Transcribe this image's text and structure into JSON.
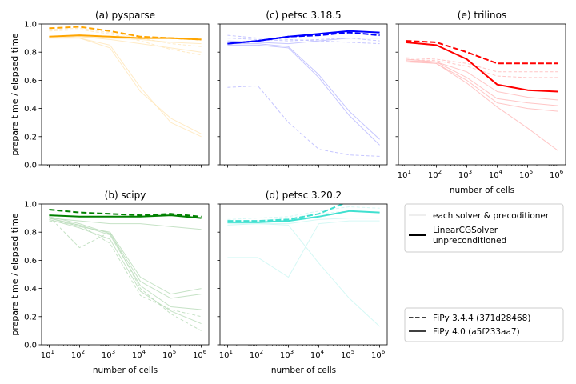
{
  "figure": {
    "ylabel": "prepare time / elapsed time",
    "xlabel": "number of cells",
    "legend_solver": {
      "each": "each solver & precoditioner",
      "highlight_line1": "LinearCGSolver",
      "highlight_line2": "unpreconditioned"
    },
    "legend_version": {
      "old": "FiPy 3.4.4 (371d28468)",
      "new": "FiPy 4.0 (a5f233aa7)"
    },
    "xtick_labels": [
      "10",
      "10",
      "10",
      "10",
      "10",
      "10"
    ],
    "xtick_exps": [
      "1",
      "2",
      "3",
      "4",
      "5",
      "6"
    ],
    "ytick_labels": [
      "0.0",
      "0.2",
      "0.4",
      "0.6",
      "0.8",
      "1.0"
    ]
  },
  "chart_data": [
    {
      "type": "line",
      "title": "(a) pysparse",
      "color": "#ffa500",
      "xscale": "log",
      "xlim": [
        10,
        1000000
      ],
      "ylim": [
        0,
        1
      ],
      "x": [
        10,
        100,
        1000,
        10000,
        100000,
        1000000
      ],
      "series": [
        {
          "version": "3.4.4",
          "style": "dashed",
          "highlight": true,
          "values": [
            0.97,
            0.98,
            0.95,
            0.91,
            0.9,
            0.89
          ]
        },
        {
          "version": "4.0",
          "style": "solid",
          "highlight": true,
          "values": [
            0.91,
            0.92,
            0.91,
            0.9,
            0.9,
            0.89
          ]
        },
        {
          "version": "3.4.4",
          "style": "dashed",
          "highlight": false,
          "values": [
            0.96,
            0.97,
            0.94,
            0.9,
            0.86,
            0.84
          ]
        },
        {
          "version": "3.4.4",
          "style": "dashed",
          "highlight": false,
          "values": [
            0.95,
            0.96,
            0.93,
            0.88,
            0.82,
            0.78
          ]
        },
        {
          "version": "4.0",
          "style": "solid",
          "highlight": false,
          "values": [
            0.9,
            0.91,
            0.9,
            0.89,
            0.87,
            0.86
          ]
        },
        {
          "version": "4.0",
          "style": "solid",
          "highlight": false,
          "values": [
            0.9,
            0.91,
            0.89,
            0.86,
            0.83,
            0.8
          ]
        },
        {
          "version": "4.0",
          "style": "solid",
          "highlight": false,
          "values": [
            0.9,
            0.9,
            0.85,
            0.55,
            0.3,
            0.2
          ]
        },
        {
          "version": "4.0",
          "style": "solid",
          "highlight": false,
          "values": [
            0.9,
            0.9,
            0.83,
            0.52,
            0.33,
            0.22
          ]
        }
      ]
    },
    {
      "type": "line",
      "title": "(c) petsc 3.18.5",
      "color": "#0000ff",
      "xscale": "log",
      "xlim": [
        10,
        1000000
      ],
      "ylim": [
        0,
        1
      ],
      "x": [
        10,
        100,
        1000,
        10000,
        100000,
        1000000
      ],
      "series": [
        {
          "version": "3.4.4",
          "style": "dashed",
          "highlight": true,
          "values": [
            0.86,
            0.88,
            0.91,
            0.92,
            0.94,
            0.92
          ]
        },
        {
          "version": "4.0",
          "style": "solid",
          "highlight": true,
          "values": [
            0.86,
            0.88,
            0.91,
            0.93,
            0.95,
            0.94
          ]
        },
        {
          "version": "3.4.4",
          "style": "dashed",
          "highlight": false,
          "values": [
            0.92,
            0.9,
            0.89,
            0.88,
            0.87,
            0.86
          ]
        },
        {
          "version": "3.4.4",
          "style": "dashed",
          "highlight": false,
          "values": [
            0.9,
            0.89,
            0.88,
            0.89,
            0.9,
            0.88
          ]
        },
        {
          "version": "3.4.4",
          "style": "dashed",
          "highlight": false,
          "values": [
            0.55,
            0.56,
            0.3,
            0.11,
            0.07,
            0.06
          ]
        },
        {
          "version": "4.0",
          "style": "solid",
          "highlight": false,
          "values": [
            0.88,
            0.87,
            0.86,
            0.88,
            0.9,
            0.9
          ]
        },
        {
          "version": "4.0",
          "style": "solid",
          "highlight": false,
          "values": [
            0.85,
            0.85,
            0.83,
            0.62,
            0.35,
            0.14
          ]
        },
        {
          "version": "4.0",
          "style": "solid",
          "highlight": false,
          "values": [
            0.86,
            0.86,
            0.84,
            0.64,
            0.38,
            0.18
          ]
        }
      ]
    },
    {
      "type": "line",
      "title": "(e) trilinos",
      "color": "#ff0000",
      "xscale": "log",
      "xlim": [
        10,
        1000000
      ],
      "ylim": [
        0,
        1
      ],
      "x": [
        10,
        100,
        1000,
        10000,
        100000,
        1000000
      ],
      "series": [
        {
          "version": "3.4.4",
          "style": "dashed",
          "highlight": true,
          "values": [
            0.88,
            0.87,
            0.8,
            0.72,
            0.72,
            0.72
          ]
        },
        {
          "version": "4.0",
          "style": "solid",
          "highlight": true,
          "values": [
            0.87,
            0.85,
            0.75,
            0.57,
            0.53,
            0.52
          ]
        },
        {
          "version": "3.4.4",
          "style": "dashed",
          "highlight": false,
          "values": [
            0.76,
            0.75,
            0.72,
            0.66,
            0.66,
            0.66
          ]
        },
        {
          "version": "3.4.4",
          "style": "dashed",
          "highlight": false,
          "values": [
            0.75,
            0.74,
            0.7,
            0.63,
            0.62,
            0.62
          ]
        },
        {
          "version": "4.0",
          "style": "solid",
          "highlight": false,
          "values": [
            0.74,
            0.73,
            0.62,
            0.47,
            0.44,
            0.42
          ]
        },
        {
          "version": "4.0",
          "style": "solid",
          "highlight": false,
          "values": [
            0.73,
            0.72,
            0.6,
            0.44,
            0.4,
            0.38
          ]
        },
        {
          "version": "4.0",
          "style": "solid",
          "highlight": false,
          "values": [
            0.74,
            0.72,
            0.58,
            0.41,
            0.26,
            0.1
          ]
        },
        {
          "version": "4.0",
          "style": "solid",
          "highlight": false,
          "values": [
            0.75,
            0.73,
            0.66,
            0.52,
            0.48,
            0.46
          ]
        }
      ]
    },
    {
      "type": "line",
      "title": "(b) scipy",
      "color": "#008000",
      "xscale": "log",
      "xlim": [
        10,
        1000000
      ],
      "ylim": [
        0,
        1
      ],
      "x": [
        10,
        100,
        1000,
        10000,
        100000,
        1000000
      ],
      "series": [
        {
          "version": "3.4.4",
          "style": "dashed",
          "highlight": true,
          "values": [
            0.96,
            0.94,
            0.93,
            0.92,
            0.93,
            0.91
          ]
        },
        {
          "version": "4.0",
          "style": "solid",
          "highlight": true,
          "values": [
            0.92,
            0.91,
            0.91,
            0.91,
            0.92,
            0.9
          ]
        },
        {
          "version": "4.0",
          "style": "solid",
          "highlight": false,
          "values": [
            0.9,
            0.85,
            0.78,
            0.42,
            0.27,
            0.25
          ]
        },
        {
          "version": "4.0",
          "style": "solid",
          "highlight": false,
          "values": [
            0.91,
            0.86,
            0.79,
            0.45,
            0.33,
            0.36
          ]
        },
        {
          "version": "4.0",
          "style": "solid",
          "highlight": false,
          "values": [
            0.89,
            0.83,
            0.75,
            0.38,
            0.24,
            0.15
          ]
        },
        {
          "version": "4.0",
          "style": "solid",
          "highlight": false,
          "values": [
            0.9,
            0.84,
            0.8,
            0.48,
            0.36,
            0.4
          ]
        },
        {
          "version": "3.4.4",
          "style": "dashed",
          "highlight": false,
          "values": [
            0.91,
            0.69,
            0.8,
            0.4,
            0.22,
            0.1
          ]
        },
        {
          "version": "3.4.4",
          "style": "dashed",
          "highlight": false,
          "values": [
            0.88,
            0.85,
            0.72,
            0.35,
            0.25,
            0.2
          ]
        },
        {
          "version": "4.0",
          "style": "solid",
          "highlight": false,
          "values": [
            0.9,
            0.88,
            0.86,
            0.86,
            0.84,
            0.82
          ]
        }
      ]
    },
    {
      "type": "line",
      "title": "(d) petsc 3.20.2",
      "color": "#40e0d0",
      "xscale": "log",
      "xlim": [
        10,
        1000000
      ],
      "ylim": [
        0,
        1
      ],
      "x": [
        10,
        100,
        1000,
        10000,
        100000,
        1000000
      ],
      "series": [
        {
          "version": "3.4.4",
          "style": "dashed",
          "highlight": true,
          "values": [
            0.88,
            0.88,
            0.89,
            0.93,
            1.02,
            1.05
          ]
        },
        {
          "version": "4.0",
          "style": "solid",
          "highlight": true,
          "values": [
            0.87,
            0.87,
            0.88,
            0.91,
            0.95,
            0.94
          ]
        },
        {
          "version": "3.4.4",
          "style": "dashed",
          "highlight": false,
          "values": [
            0.89,
            0.9,
            0.91,
            0.95,
            0.98,
            0.97
          ]
        },
        {
          "version": "3.4.4",
          "style": "dashed",
          "highlight": false,
          "values": [
            0.87,
            0.88,
            0.9,
            0.93,
            0.95,
            0.94
          ]
        },
        {
          "version": "4.0",
          "style": "solid",
          "highlight": false,
          "values": [
            0.86,
            0.86,
            0.86,
            0.89,
            0.9,
            0.9
          ]
        },
        {
          "version": "4.0",
          "style": "solid",
          "highlight": false,
          "values": [
            0.85,
            0.86,
            0.85,
            0.58,
            0.33,
            0.13
          ]
        },
        {
          "version": "4.0",
          "style": "solid",
          "highlight": false,
          "values": [
            0.62,
            0.62,
            0.48,
            0.86,
            0.88,
            0.88
          ]
        }
      ]
    }
  ]
}
